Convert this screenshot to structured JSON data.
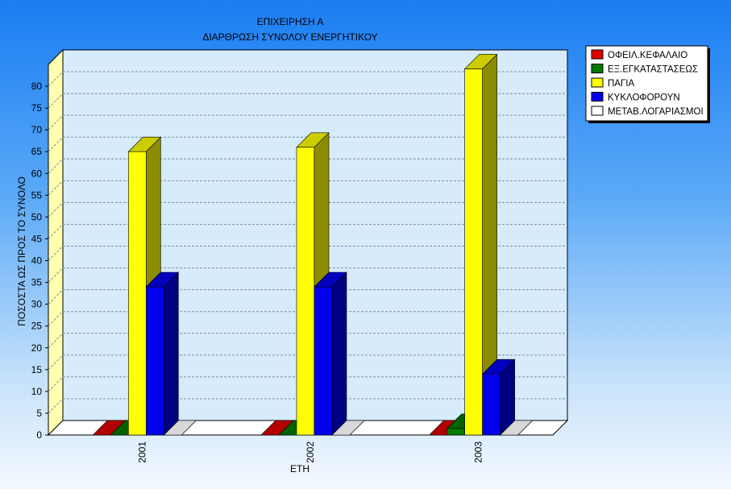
{
  "chart_data": {
    "type": "bar",
    "title": "ΕΠΙΧΕΙΡΗΣΗ Α",
    "subtitle": "ΔΙΑΡΘΡΩΣΗ ΣΥΝΟΛΟΥ ΕΝΕΡΓΗΤΙΚΟΥ",
    "xlabel": "ΕΤΗ",
    "ylabel": "ΠΟΣΟΣΤΑ ΩΣ ΠΡΟΣ ΤΟ ΣΥΝΟΛΟ",
    "categories": [
      "2001",
      "2002",
      "2003"
    ],
    "ylim": [
      0,
      85
    ],
    "yticks": [
      0,
      5,
      10,
      15,
      20,
      25,
      30,
      35,
      40,
      45,
      50,
      55,
      60,
      65,
      70,
      75,
      80
    ],
    "grid": true,
    "legend_position": "top-right",
    "series": [
      {
        "name": "ΟΦΕΙΛ.ΚΕΦΑΛΑΙΟ",
        "values": [
          0,
          0,
          0
        ],
        "color": "#e00000"
      },
      {
        "name": "ΕΞ.ΕΓΚΑΤΑΣΤΑΣΕΩΣ",
        "values": [
          0,
          0,
          1.5
        ],
        "color": "#007a00"
      },
      {
        "name": "ΠΑΓΙΑ",
        "values": [
          65,
          66,
          84
        ],
        "color": "#ffff00"
      },
      {
        "name": "ΚΥΚΛΟΦΟΡΟΥΝ",
        "values": [
          34,
          34,
          14
        ],
        "color": "#0000ee"
      },
      {
        "name": "ΜΕΤΑΒ.ΛΟΓΑΡΙΑΣΜΟΙ",
        "values": [
          0,
          0,
          0
        ],
        "color": "#ffffff"
      }
    ]
  }
}
